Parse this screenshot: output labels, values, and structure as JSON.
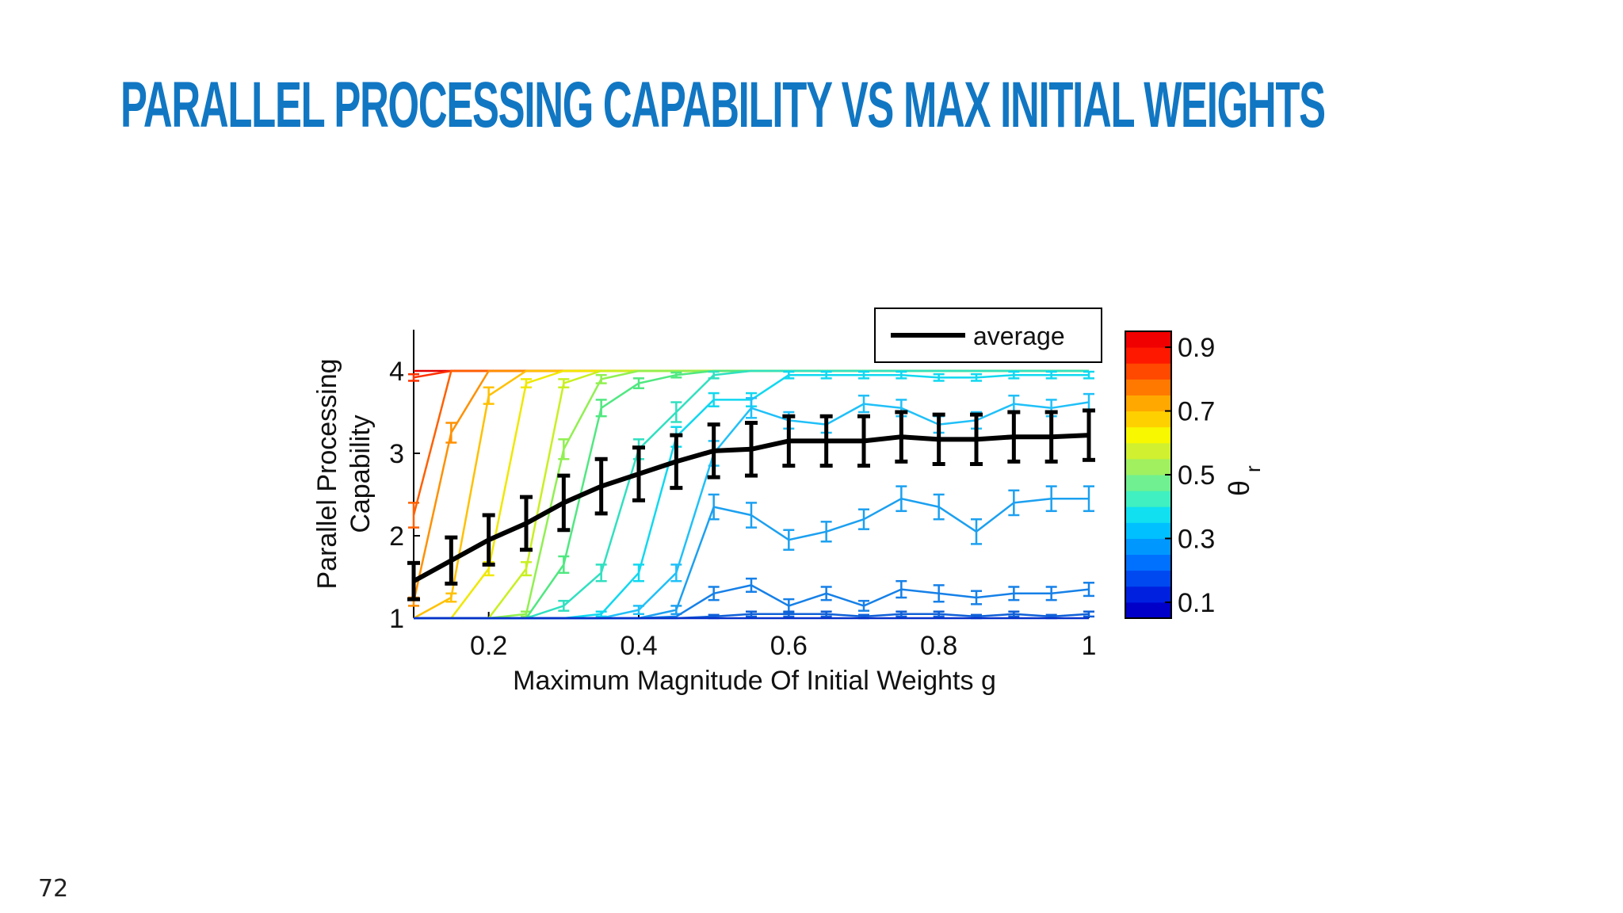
{
  "slide": {
    "title": "PARALLEL PROCESSING CAPABILITY VS MAX INITIAL WEIGHTS",
    "page_number": "72",
    "title_color": "#1177c3"
  },
  "chart_data": {
    "type": "line",
    "xlabel": "Maximum Magnitude Of Initial Weights g",
    "ylabel_line1": "Parallel Processing",
    "ylabel_line2": "Capability",
    "xlim": [
      0.1,
      1
    ],
    "ylim": [
      1,
      4.5
    ],
    "xticks": [
      0.2,
      0.4,
      0.6,
      0.8,
      1
    ],
    "xtick_labels": [
      "0.2",
      "0.4",
      "0.6",
      "0.8",
      "1"
    ],
    "yticks": [
      1,
      2,
      3,
      4
    ],
    "ytick_labels": [
      "1",
      "2",
      "3",
      "4"
    ],
    "legend": {
      "label": "average",
      "placement": "top-right"
    },
    "colorbar": {
      "label": "θ",
      "label_sub": "r",
      "tick_values": [
        0.1,
        0.3,
        0.5,
        0.7,
        0.9
      ],
      "tick_labels": [
        "0.1",
        "0.3",
        "0.5",
        "0.7",
        "0.9"
      ],
      "range": [
        0.05,
        0.95
      ],
      "colors": [
        "#0000c8",
        "#0020e0",
        "#0048f0",
        "#0070ff",
        "#0098ff",
        "#00c0ff",
        "#10e0f0",
        "#40f0c0",
        "#70f090",
        "#a0f060",
        "#d0f030",
        "#f8f800",
        "#ffd000",
        "#ffa800",
        "#ff7800",
        "#ff4800",
        "#ff1800",
        "#f00000"
      ]
    },
    "x": [
      0.1,
      0.15,
      0.2,
      0.25,
      0.3,
      0.35,
      0.4,
      0.45,
      0.5,
      0.55,
      0.6,
      0.65,
      0.7,
      0.75,
      0.8,
      0.85,
      0.9,
      0.95,
      1.0
    ],
    "series": [
      {
        "theta": 0.95,
        "color": "#e00000",
        "values": [
          4,
          4,
          4,
          4,
          4,
          4,
          4,
          4,
          4,
          4,
          4,
          4,
          4,
          4,
          4,
          4,
          4,
          4,
          4
        ],
        "err": [
          0,
          0,
          0,
          0,
          0,
          0,
          0,
          0,
          0,
          0,
          0,
          0,
          0,
          0,
          0,
          0,
          0,
          0,
          0
        ]
      },
      {
        "theta": 0.9,
        "color": "#ff3000",
        "values": [
          3.92,
          4,
          4,
          4,
          4,
          4,
          4,
          4,
          4,
          4,
          4,
          4,
          4,
          4,
          4,
          4,
          4,
          4,
          4
        ],
        "err": [
          0.04,
          0,
          0,
          0,
          0,
          0,
          0,
          0,
          0,
          0,
          0,
          0,
          0,
          0,
          0,
          0,
          0,
          0,
          0
        ]
      },
      {
        "theta": 0.85,
        "color": "#ff6000",
        "values": [
          2.25,
          4,
          4,
          4,
          4,
          4,
          4,
          4,
          4,
          4,
          4,
          4,
          4,
          4,
          4,
          4,
          4,
          4,
          4
        ],
        "err": [
          0.15,
          0,
          0,
          0,
          0,
          0,
          0,
          0,
          0,
          0,
          0,
          0,
          0,
          0,
          0,
          0,
          0,
          0,
          0
        ]
      },
      {
        "theta": 0.8,
        "color": "#ff9000",
        "values": [
          1.2,
          3.25,
          4,
          4,
          4,
          4,
          4,
          4,
          4,
          4,
          4,
          4,
          4,
          4,
          4,
          4,
          4,
          4,
          4
        ],
        "err": [
          0.05,
          0.12,
          0,
          0,
          0,
          0,
          0,
          0,
          0,
          0,
          0,
          0,
          0,
          0,
          0,
          0,
          0,
          0,
          0
        ]
      },
      {
        "theta": 0.75,
        "color": "#ffc000",
        "values": [
          1,
          1.25,
          3.7,
          4,
          4,
          4,
          4,
          4,
          4,
          4,
          4,
          4,
          4,
          4,
          4,
          4,
          4,
          4,
          4
        ],
        "err": [
          0,
          0.05,
          0.1,
          0,
          0,
          0,
          0,
          0,
          0,
          0,
          0,
          0,
          0,
          0,
          0,
          0,
          0,
          0,
          0
        ]
      },
      {
        "theta": 0.7,
        "color": "#f0e800",
        "values": [
          1,
          1,
          1.6,
          3.85,
          4,
          4,
          4,
          4,
          4,
          4,
          4,
          4,
          4,
          4,
          4,
          4,
          4,
          4,
          4
        ],
        "err": [
          0,
          0,
          0.08,
          0.05,
          0,
          0,
          0,
          0,
          0,
          0,
          0,
          0,
          0,
          0,
          0,
          0,
          0,
          0,
          0
        ]
      },
      {
        "theta": 0.65,
        "color": "#c8f020",
        "values": [
          1,
          1,
          1,
          1.6,
          3.85,
          4,
          4,
          4,
          4,
          4,
          4,
          4,
          4,
          4,
          4,
          4,
          4,
          4,
          4
        ],
        "err": [
          0,
          0,
          0,
          0.08,
          0.05,
          0,
          0,
          0,
          0,
          0,
          0,
          0,
          0,
          0,
          0,
          0,
          0,
          0,
          0
        ]
      },
      {
        "theta": 0.6,
        "color": "#90f050",
        "values": [
          1,
          1,
          1,
          1.05,
          3.05,
          3.9,
          4,
          4,
          4,
          4,
          4,
          4,
          4,
          4,
          4,
          4,
          4,
          4,
          4
        ],
        "err": [
          0,
          0,
          0,
          0.03,
          0.12,
          0.05,
          0,
          0,
          0,
          0,
          0,
          0,
          0,
          0,
          0,
          0,
          0,
          0,
          0
        ]
      },
      {
        "theta": 0.55,
        "color": "#50e880",
        "values": [
          1,
          1,
          1,
          1,
          1.65,
          3.55,
          3.85,
          3.95,
          4,
          4,
          4,
          4,
          4,
          4,
          4,
          4,
          4,
          4,
          4
        ],
        "err": [
          0,
          0,
          0,
          0,
          0.1,
          0.1,
          0.06,
          0.03,
          0,
          0,
          0,
          0,
          0,
          0,
          0,
          0,
          0,
          0,
          0
        ]
      },
      {
        "theta": 0.5,
        "color": "#30e0c0",
        "values": [
          1,
          1,
          1,
          1,
          1.15,
          1.55,
          3.05,
          3.5,
          3.95,
          4,
          4,
          4,
          4,
          4,
          4,
          4,
          4,
          4,
          4
        ],
        "err": [
          0,
          0,
          0,
          0,
          0.06,
          0.1,
          0.12,
          0.12,
          0.04,
          0,
          0,
          0,
          0,
          0,
          0,
          0,
          0,
          0,
          0
        ]
      },
      {
        "theta": 0.45,
        "color": "#10d8f0",
        "values": [
          1,
          1,
          1,
          1,
          1,
          1.05,
          1.55,
          3.2,
          3.65,
          3.65,
          3.95,
          3.95,
          3.95,
          3.95,
          3.92,
          3.92,
          3.95,
          3.95,
          3.95
        ],
        "err": [
          0,
          0,
          0,
          0,
          0,
          0.03,
          0.1,
          0.12,
          0.08,
          0.08,
          0.04,
          0.04,
          0.04,
          0.04,
          0.04,
          0.04,
          0.04,
          0.04,
          0.04
        ]
      },
      {
        "theta": 0.4,
        "color": "#20c0f8",
        "values": [
          1,
          1,
          1,
          1,
          1,
          1,
          1.1,
          1.55,
          3.0,
          3.55,
          3.4,
          3.35,
          3.6,
          3.55,
          3.35,
          3.4,
          3.6,
          3.55,
          3.62
        ],
        "err": [
          0,
          0,
          0,
          0,
          0,
          0,
          0.05,
          0.1,
          0.15,
          0.12,
          0.1,
          0.1,
          0.1,
          0.1,
          0.1,
          0.1,
          0.1,
          0.1,
          0.1
        ]
      },
      {
        "theta": 0.35,
        "color": "#1ca0f0",
        "values": [
          1,
          1,
          1,
          1,
          1,
          1,
          1,
          1.1,
          2.35,
          2.25,
          1.95,
          2.05,
          2.2,
          2.45,
          2.35,
          2.05,
          2.4,
          2.45,
          2.45
        ],
        "err": [
          0,
          0,
          0,
          0,
          0,
          0,
          0,
          0.05,
          0.15,
          0.15,
          0.12,
          0.12,
          0.12,
          0.15,
          0.15,
          0.15,
          0.15,
          0.15,
          0.15
        ]
      },
      {
        "theta": 0.3,
        "color": "#1680e8",
        "values": [
          1,
          1,
          1,
          1,
          1,
          1,
          1,
          1.02,
          1.3,
          1.4,
          1.15,
          1.3,
          1.15,
          1.35,
          1.3,
          1.25,
          1.3,
          1.3,
          1.35
        ],
        "err": [
          0,
          0,
          0,
          0,
          0,
          0,
          0,
          0,
          0.08,
          0.08,
          0.08,
          0.08,
          0.06,
          0.1,
          0.1,
          0.08,
          0.08,
          0.08,
          0.08
        ]
      },
      {
        "theta": 0.25,
        "color": "#1060d8",
        "values": [
          1,
          1,
          1,
          1,
          1,
          1,
          1,
          1,
          1.02,
          1.05,
          1.05,
          1.05,
          1.02,
          1.05,
          1.05,
          1.02,
          1.05,
          1.02,
          1.05
        ],
        "err": [
          0,
          0,
          0,
          0,
          0,
          0,
          0,
          0,
          0.02,
          0.03,
          0.03,
          0.03,
          0.02,
          0.03,
          0.03,
          0.02,
          0.03,
          0.02,
          0.03
        ]
      },
      {
        "theta": 0.15,
        "color": "#0830c8",
        "values": [
          1,
          1,
          1,
          1,
          1,
          1,
          1,
          1,
          1,
          1,
          1,
          1,
          1,
          1,
          1,
          1,
          1,
          1,
          1
        ],
        "err": [
          0,
          0,
          0,
          0,
          0,
          0,
          0,
          0,
          0,
          0,
          0,
          0,
          0,
          0,
          0,
          0,
          0,
          0,
          0
        ]
      }
    ],
    "average": {
      "name": "average",
      "color": "#000000",
      "values": [
        1.45,
        1.7,
        1.95,
        2.15,
        2.4,
        2.6,
        2.75,
        2.9,
        3.03,
        3.05,
        3.15,
        3.15,
        3.15,
        3.2,
        3.17,
        3.17,
        3.2,
        3.2,
        3.22
      ],
      "err": [
        0.22,
        0.28,
        0.3,
        0.32,
        0.33,
        0.33,
        0.32,
        0.32,
        0.32,
        0.32,
        0.3,
        0.3,
        0.3,
        0.3,
        0.3,
        0.3,
        0.3,
        0.3,
        0.3
      ]
    }
  }
}
